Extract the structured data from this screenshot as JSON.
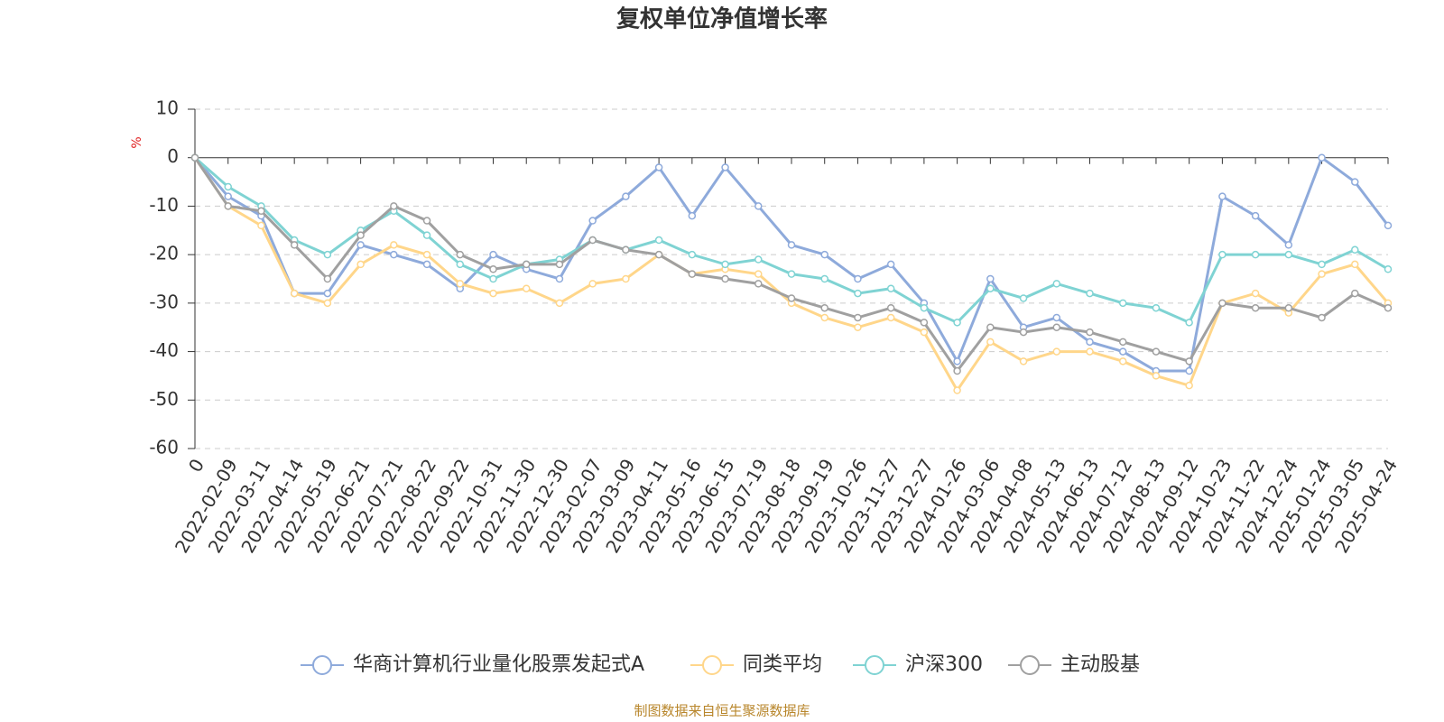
{
  "chart_data": {
    "type": "line",
    "title": "复权单位净值增长率",
    "y_label": "%",
    "source": "制图数据来自恒生聚源数据库",
    "categories": [
      "0",
      "2022-02-09",
      "2022-03-11",
      "2022-04-14",
      "2022-05-19",
      "2022-06-21",
      "2022-07-21",
      "2022-08-22",
      "2022-09-22",
      "2022-10-31",
      "2022-11-30",
      "2022-12-30",
      "2023-02-07",
      "2023-03-09",
      "2023-04-11",
      "2023-05-16",
      "2023-06-15",
      "2023-07-19",
      "2023-08-18",
      "2023-09-19",
      "2023-10-26",
      "2023-11-27",
      "2023-12-27",
      "2024-01-26",
      "2024-03-06",
      "2024-04-08",
      "2024-05-13",
      "2024-06-13",
      "2024-07-12",
      "2024-08-13",
      "2024-09-12",
      "2024-10-23",
      "2024-11-22",
      "2024-12-24",
      "2025-01-24",
      "2025-03-05",
      "2025-04-24"
    ],
    "series": [
      {
        "name": "华商计算机行业量化股票发起式A",
        "color": "#8eaadb",
        "values": [
          0,
          -8,
          -12,
          -28,
          -28,
          -18,
          -20,
          -22,
          -27,
          -20,
          -23,
          -25,
          -13,
          -8,
          -2,
          -12,
          -2,
          -10,
          -18,
          -20,
          -25,
          -22,
          -30,
          -42,
          -25,
          -35,
          -33,
          -38,
          -40,
          -44,
          -44,
          -8,
          -12,
          -18,
          0,
          -5,
          -14
        ]
      },
      {
        "name": "同类平均",
        "color": "#ffd68a",
        "values": [
          0,
          -10,
          -14,
          -28,
          -30,
          -22,
          -18,
          -20,
          -26,
          -28,
          -27,
          -30,
          -26,
          -25,
          -20,
          -24,
          -23,
          -24,
          -30,
          -33,
          -35,
          -33,
          -36,
          -48,
          -38,
          -42,
          -40,
          -40,
          -42,
          -45,
          -47,
          -30,
          -28,
          -32,
          -24,
          -22,
          -30
        ]
      },
      {
        "name": "沪深300",
        "color": "#7fd3d3",
        "values": [
          0,
          -6,
          -10,
          -17,
          -20,
          -15,
          -11,
          -16,
          -22,
          -25,
          -22,
          -21,
          -17,
          -19,
          -17,
          -20,
          -22,
          -21,
          -24,
          -25,
          -28,
          -27,
          -31,
          -34,
          -27,
          -29,
          -26,
          -28,
          -30,
          -31,
          -34,
          -20,
          -20,
          -20,
          -22,
          -19,
          -23
        ]
      },
      {
        "name": "主动股基",
        "color": "#a0a0a0",
        "values": [
          0,
          -10,
          -11,
          -18,
          -25,
          -16,
          -10,
          -13,
          -20,
          -23,
          -22,
          -22,
          -17,
          -19,
          -20,
          -24,
          -25,
          -26,
          -29,
          -31,
          -33,
          -31,
          -34,
          -44,
          -35,
          -36,
          -35,
          -36,
          -38,
          -40,
          -42,
          -30,
          -31,
          -31,
          -33,
          -28,
          -31
        ]
      }
    ],
    "ylim": [
      -60,
      10
    ],
    "yticks": [
      -60,
      -50,
      -40,
      -30,
      -20,
      -10,
      0,
      10
    ],
    "grid": true
  }
}
